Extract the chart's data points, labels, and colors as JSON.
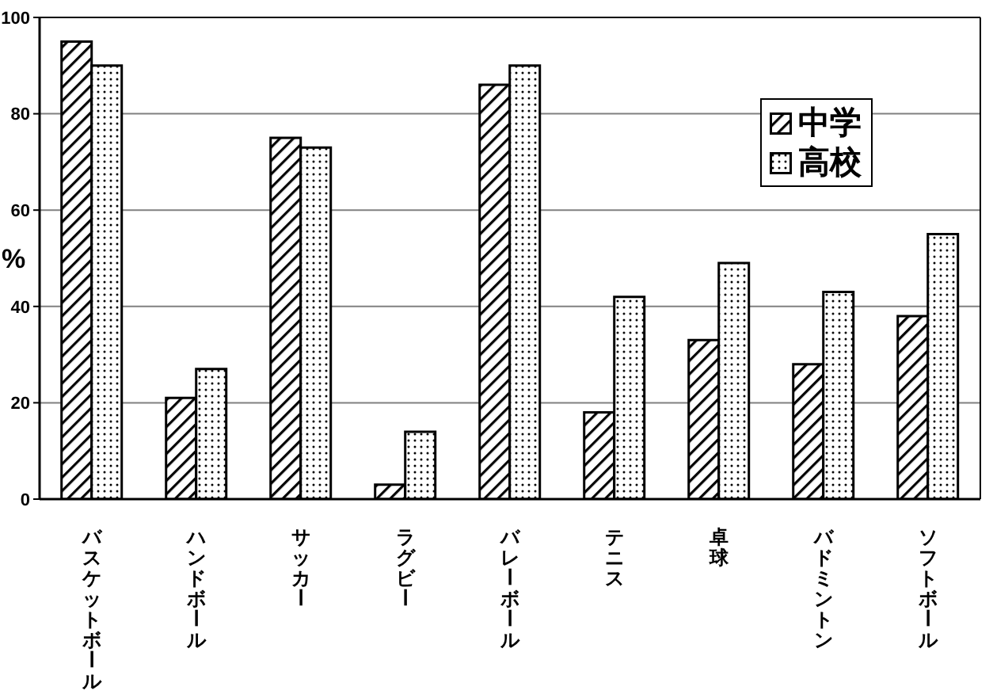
{
  "chart_data": {
    "type": "bar",
    "ylabel": "%",
    "categories": [
      "バスケットボール",
      "ハンドボール",
      "サッカー",
      "ラグビー",
      "バレーボール",
      "テニス",
      "卓球",
      "バドミントン",
      "ソフトボール"
    ],
    "series": [
      {
        "name": "中学",
        "color": "#000000",
        "values": [
          95,
          21,
          75,
          3,
          86,
          18,
          33,
          28,
          38
        ]
      },
      {
        "name": "高校",
        "color": "#000000",
        "values": [
          90,
          27,
          73,
          14,
          90,
          42,
          49,
          43,
          55
        ]
      }
    ],
    "ylim": [
      0,
      100
    ],
    "yticks": [
      0,
      20,
      40,
      60,
      80,
      100
    ],
    "grid": "y",
    "legend": "top right"
  }
}
